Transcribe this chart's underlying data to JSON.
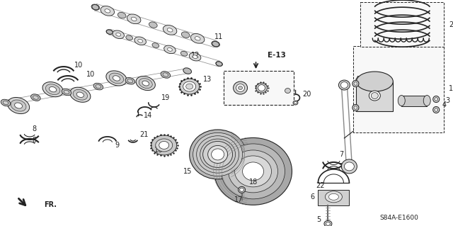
{
  "bg_color": "#ffffff",
  "diagram_code": "S84A-E1600",
  "reference_label": "E-13",
  "line_color": "#222222",
  "gray1": "#cccccc",
  "gray2": "#e8e8e8",
  "gray3": "#aaaaaa",
  "gray_dark": "#888888"
}
